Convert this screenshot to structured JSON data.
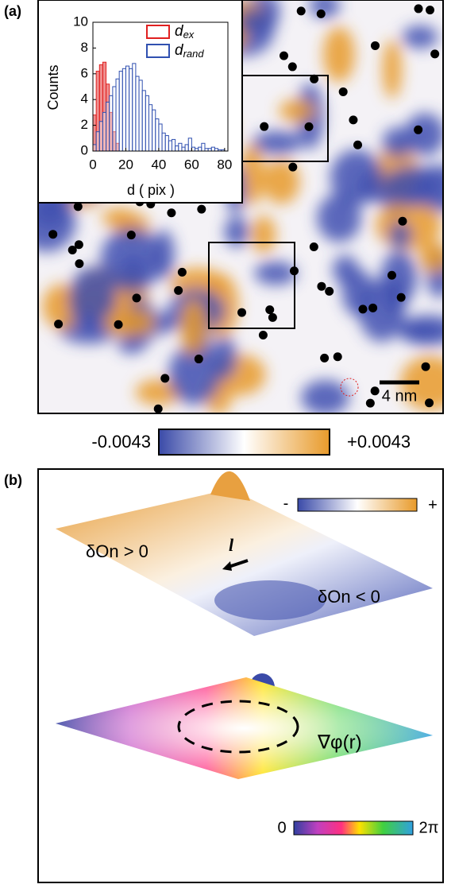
{
  "panel_a": {
    "label": "(a)",
    "scale_bar": "4 nm",
    "colorbar": {
      "min_label": "-0.0043",
      "max_label": "+0.0043"
    }
  },
  "chart_data": {
    "type": "histogram",
    "xlabel": "d ( pix )",
    "ylabel": "Counts",
    "bins": [
      0,
      2,
      4,
      6,
      8,
      10,
      12,
      14,
      16,
      18,
      20,
      22,
      24,
      26,
      28,
      30,
      32,
      34,
      36,
      38,
      40,
      42,
      44,
      46,
      48,
      50,
      52,
      54,
      56,
      58,
      60,
      62,
      64,
      66,
      68,
      70,
      72,
      74,
      76,
      78,
      80
    ],
    "xlim": [
      0,
      82
    ],
    "ylim": [
      0,
      10
    ],
    "xticks": [
      0,
      20,
      40,
      60,
      80
    ],
    "yticks": [
      0,
      2,
      4,
      6,
      8,
      10
    ],
    "legend": "upper right",
    "series": [
      {
        "name": "dex",
        "color": "#e02020",
        "values": [
          2.8,
          6.2,
          6.7,
          6.9,
          5.2,
          3,
          1.5,
          0.6,
          0,
          0,
          0,
          0,
          0,
          0,
          0,
          0,
          0,
          0,
          0,
          0,
          0,
          0,
          0,
          0,
          0,
          0,
          0,
          0,
          0,
          0,
          0,
          0,
          0,
          0,
          0,
          0,
          0,
          0,
          0,
          0
        ]
      },
      {
        "name": "drand",
        "color": "#3050b0",
        "values": [
          0.5,
          1.5,
          2.3,
          3,
          3.8,
          4.3,
          5,
          5.6,
          6.2,
          6.4,
          6.6,
          6.4,
          6.8,
          5.8,
          5.5,
          4.7,
          4.3,
          3.6,
          3.2,
          2.5,
          2.1,
          1.4,
          1.2,
          0.8,
          0.9,
          0.4,
          0.6,
          0.3,
          0.5,
          1,
          0.3,
          0.2,
          0.3,
          0.6,
          0.2,
          0.2,
          0.3,
          0.2,
          0.1,
          0.1
        ]
      }
    ]
  },
  "panel_b": {
    "label": "(b)",
    "colorbar_top": {
      "min_label": "-",
      "max_label": "+"
    },
    "upper_label": "δOn > 0",
    "vector_label": "l",
    "lower_label": "δOn < 0",
    "gradient_label": "∇φ(r)",
    "colorbar_bottom": {
      "min_label": "0",
      "max_label": "2π"
    }
  }
}
